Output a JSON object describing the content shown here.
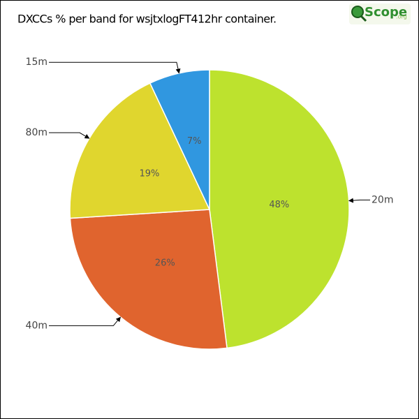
{
  "chart_data": {
    "type": "pie",
    "title": "DXCCs % per band for wsjtxlogFT412hr container.",
    "logo": {
      "name": "Scope",
      "suffix": ".org"
    },
    "categories": [
      "20m",
      "40m",
      "80m",
      "15m"
    ],
    "values": [
      48,
      26,
      19,
      7
    ],
    "value_labels": [
      "48%",
      "26%",
      "19%",
      "7%"
    ],
    "colors": [
      "#bde22e",
      "#e0642e",
      "#e0d62e",
      "#3097e0"
    ]
  }
}
